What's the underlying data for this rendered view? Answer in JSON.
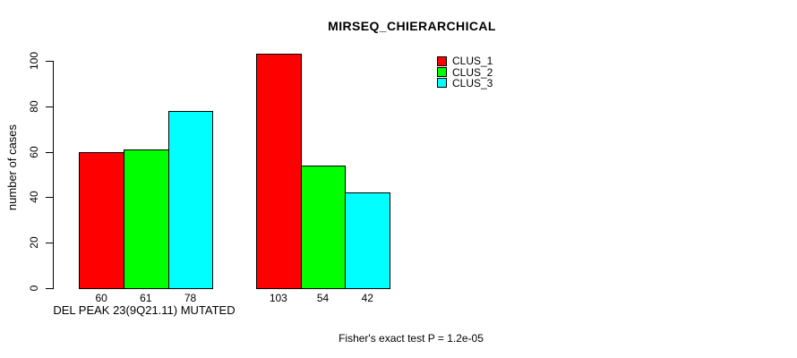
{
  "title": "MIRSEQ_CHIERARCHICAL",
  "footer": "Fisher's exact test P = 1.2e-05",
  "chart_data": {
    "type": "bar",
    "title": "MIRSEQ_CHIERARCHICAL",
    "xlabel": "DEL PEAK 23(9Q21.11) MUTATED",
    "ylabel": "number of cases",
    "ylim": [
      0,
      100
    ],
    "yticks": [
      0,
      20,
      40,
      60,
      80,
      100
    ],
    "grid": false,
    "legend_position": "top-right",
    "categories": [
      "",
      ""
    ],
    "series": [
      {
        "name": "CLUS_1",
        "color": "#ff0000",
        "values": [
          60,
          103
        ]
      },
      {
        "name": "CLUS_2",
        "color": "#00ff00",
        "values": [
          61,
          54
        ]
      },
      {
        "name": "CLUS_3",
        "color": "#00ffff",
        "values": [
          78,
          42
        ]
      }
    ],
    "bar_value_labels": [
      [
        60,
        61,
        78
      ],
      [
        103,
        54,
        42
      ]
    ],
    "annotation": "Fisher's exact test P = 1.2e-05"
  },
  "legend": {
    "items": [
      {
        "label": "CLUS_1",
        "color": "#ff0000"
      },
      {
        "label": "CLUS_2",
        "color": "#00ff00"
      },
      {
        "label": "CLUS_3",
        "color": "#00ffff"
      }
    ]
  }
}
